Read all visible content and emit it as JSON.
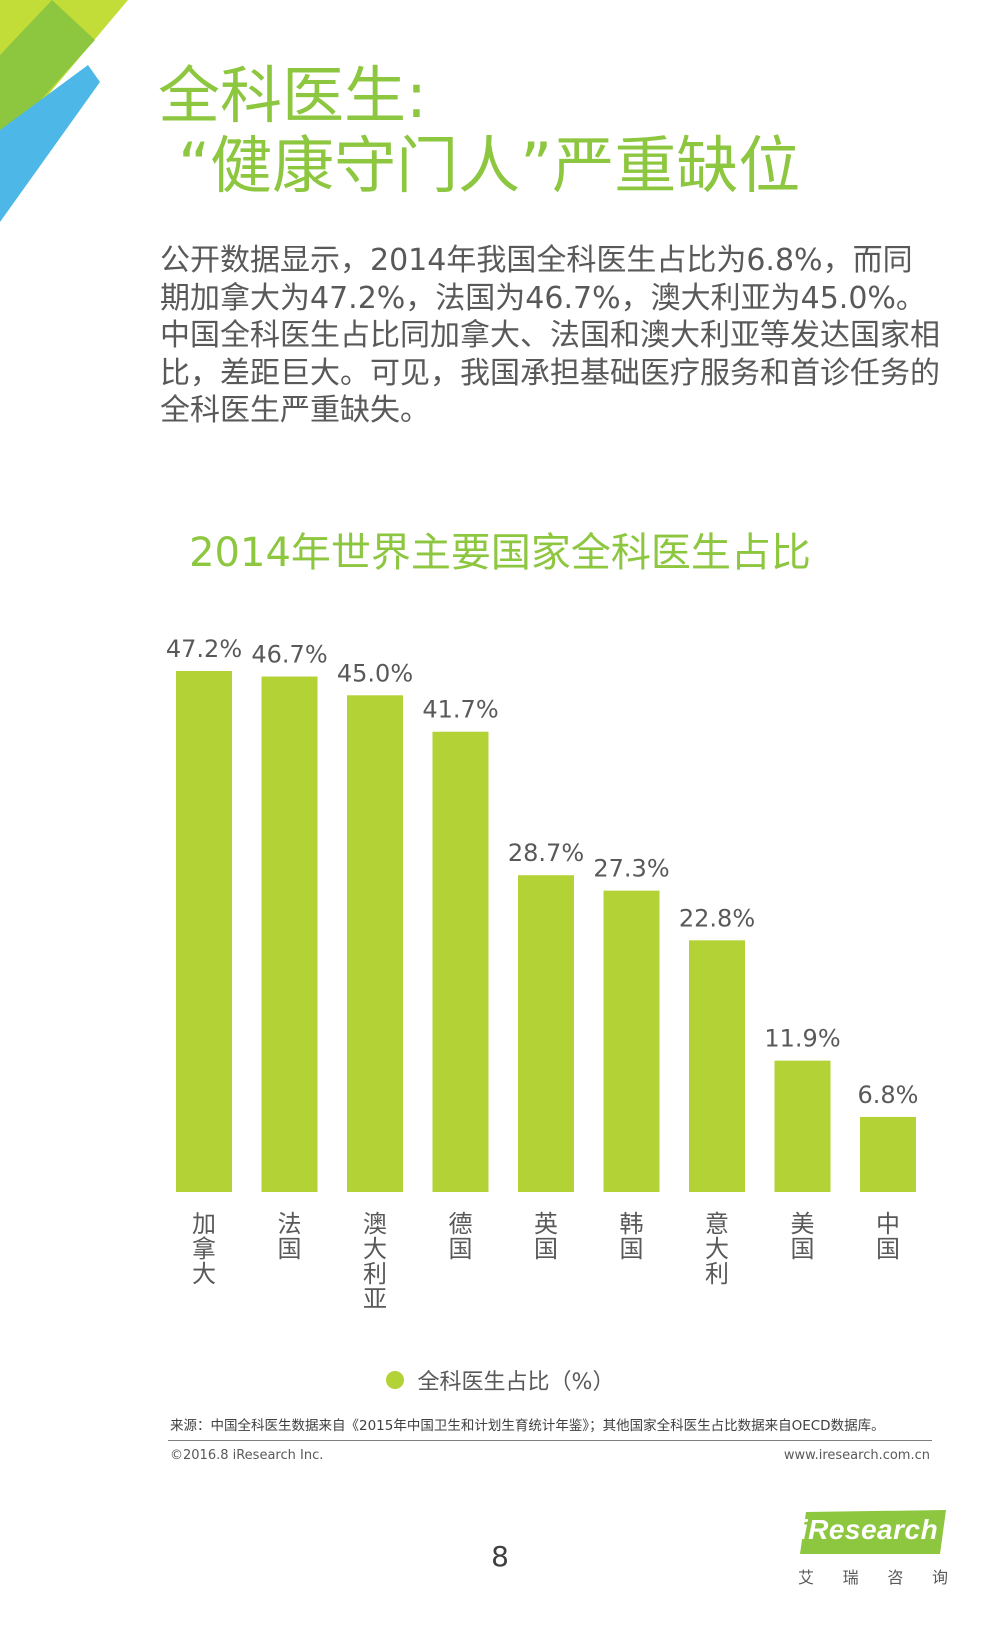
{
  "header": {
    "title_line1": "全科医生:",
    "title_line2": "“健康守门人”严重缺位"
  },
  "intro": "公开数据显示，2014年我国全科医生占比为6.8%，而同期加拿大为47.2%，法国为46.7%，澳大利亚为45.0%。中国全科医生占比同加拿大、法国和澳大利亚等发达国家相比，差距巨大。可见，我国承担基础医疗服务和首诊任务的全科医生严重缺失。",
  "chart_data": {
    "type": "bar",
    "title": "2014年世界主要国家全科医生占比",
    "categories": [
      "加拿大",
      "法国",
      "澳大利亚",
      "德国",
      "英国",
      "韩国",
      "意大利",
      "美国",
      "中国"
    ],
    "values": [
      47.2,
      46.7,
      45.0,
      41.7,
      28.7,
      27.3,
      22.8,
      11.9,
      6.8
    ],
    "value_labels": [
      "47.2%",
      "46.7%",
      "45.0%",
      "41.7%",
      "28.7%",
      "27.3%",
      "22.8%",
      "11.9%",
      "6.8%"
    ],
    "series": [
      {
        "name": "全科医生占比（%）",
        "values": [
          47.2,
          46.7,
          45.0,
          41.7,
          28.7,
          27.3,
          22.8,
          11.9,
          6.8
        ]
      }
    ],
    "ylim": [
      0,
      50
    ],
    "grid": false,
    "legend": "bottom-center",
    "category_labels_vertical": true
  },
  "footer": {
    "source": "来源：中国全科医生数据来自《2015年中国卫生和计划生育统计年鉴》；其他国家全科医生占比数据来自OECD数据库。",
    "copyright": "©2016.8 iResearch Inc.",
    "website": "www.iresearch.com.cn",
    "page_number": "8"
  },
  "logo": {
    "wordmark": "iResearch",
    "subtitle": [
      "艾",
      "瑞",
      "咨",
      "询"
    ]
  },
  "colors": {
    "accent_green": "#8dc63f",
    "bar_green": "#b2d235",
    "corner_lime": "#c3dd38",
    "corner_blue": "#4db8e8",
    "text_gray": "#595959"
  }
}
